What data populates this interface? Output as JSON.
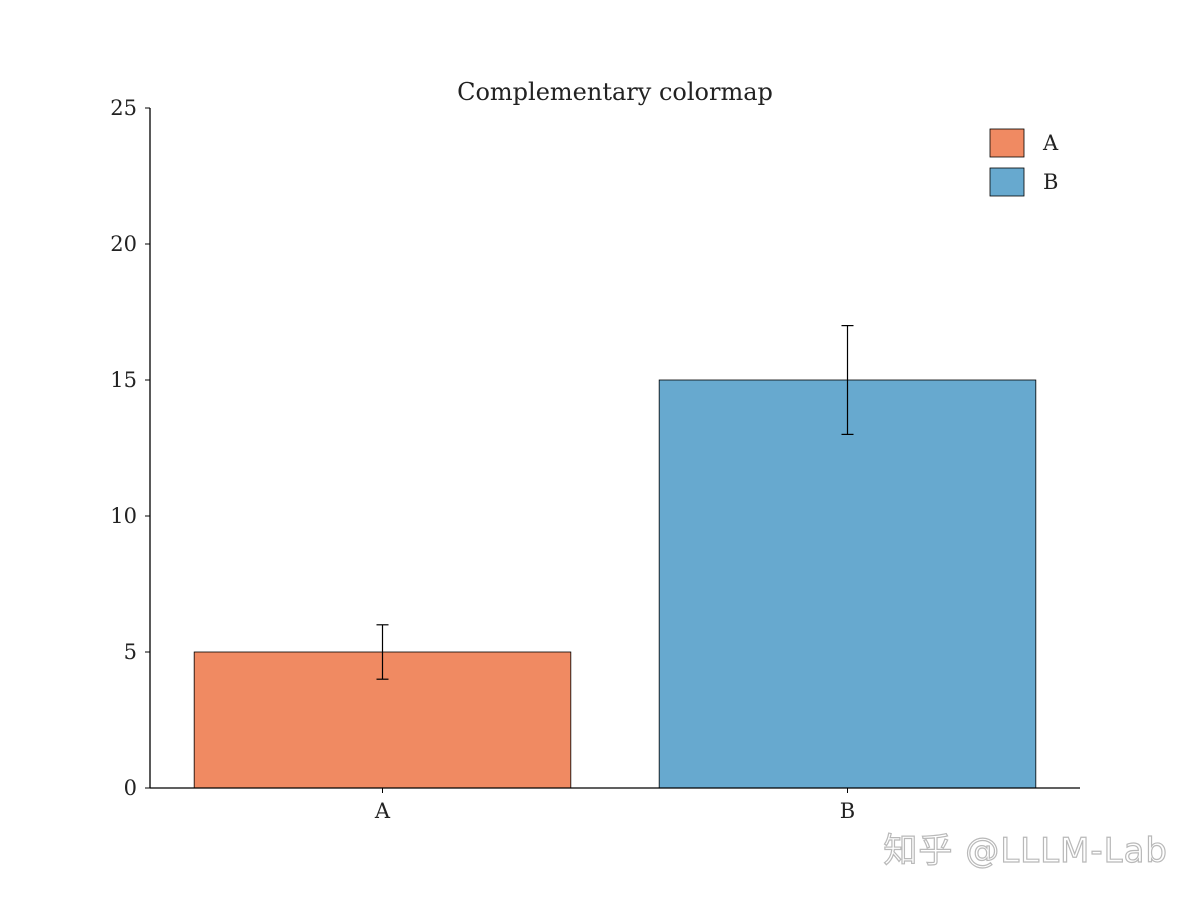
{
  "chart_data": {
    "type": "bar",
    "title": "Complementary colormap",
    "xlabel": "",
    "ylabel": "",
    "categories": [
      "A",
      "B"
    ],
    "values": [
      5,
      15
    ],
    "error": [
      1,
      2
    ],
    "colors": [
      "#f08a62",
      "#67a9cf"
    ],
    "ylim": [
      0,
      25
    ],
    "yticks": [
      "0",
      "5",
      "10",
      "15",
      "20",
      "25"
    ],
    "legend": {
      "position": "top-right",
      "entries": [
        {
          "label": "A",
          "color": "#f08a62"
        },
        {
          "label": "B",
          "color": "#67a9cf"
        }
      ]
    },
    "grid": false
  },
  "watermark": "知乎 @LLLM-Lab"
}
